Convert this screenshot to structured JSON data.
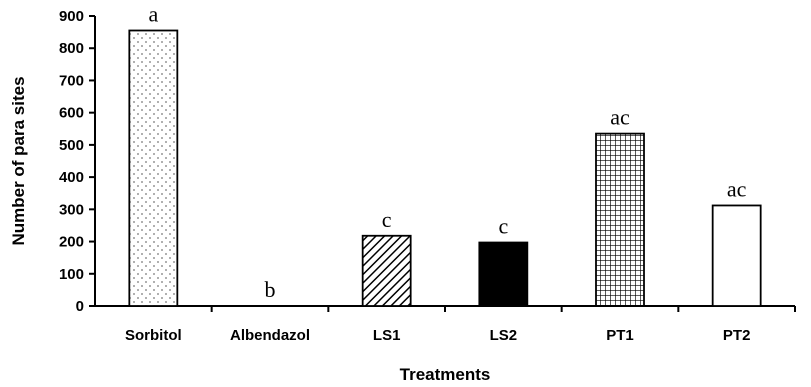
{
  "chart_data": {
    "type": "bar",
    "title": "",
    "xlabel": "Treatments",
    "ylabel": "Number of para sites",
    "ylim": [
      0,
      900
    ],
    "yticks": [
      0,
      100,
      200,
      300,
      400,
      500,
      600,
      700,
      800,
      900
    ],
    "grid": false,
    "categories": [
      "Sorbitol",
      "Albendazol",
      "LS1",
      "LS2",
      "PT1",
      "PT2"
    ],
    "values": [
      855,
      0,
      218,
      197,
      535,
      312
    ],
    "significance_labels": [
      "a",
      "b",
      "c",
      "c",
      "ac",
      "ac"
    ],
    "fill_patterns": [
      "dots",
      "none",
      "diagonal-hatch",
      "solid-black",
      "grid-hatch",
      "empty"
    ],
    "colors": {
      "bar_outline": "#000000",
      "solid_fill": "#000000",
      "background": "#ffffff"
    }
  }
}
